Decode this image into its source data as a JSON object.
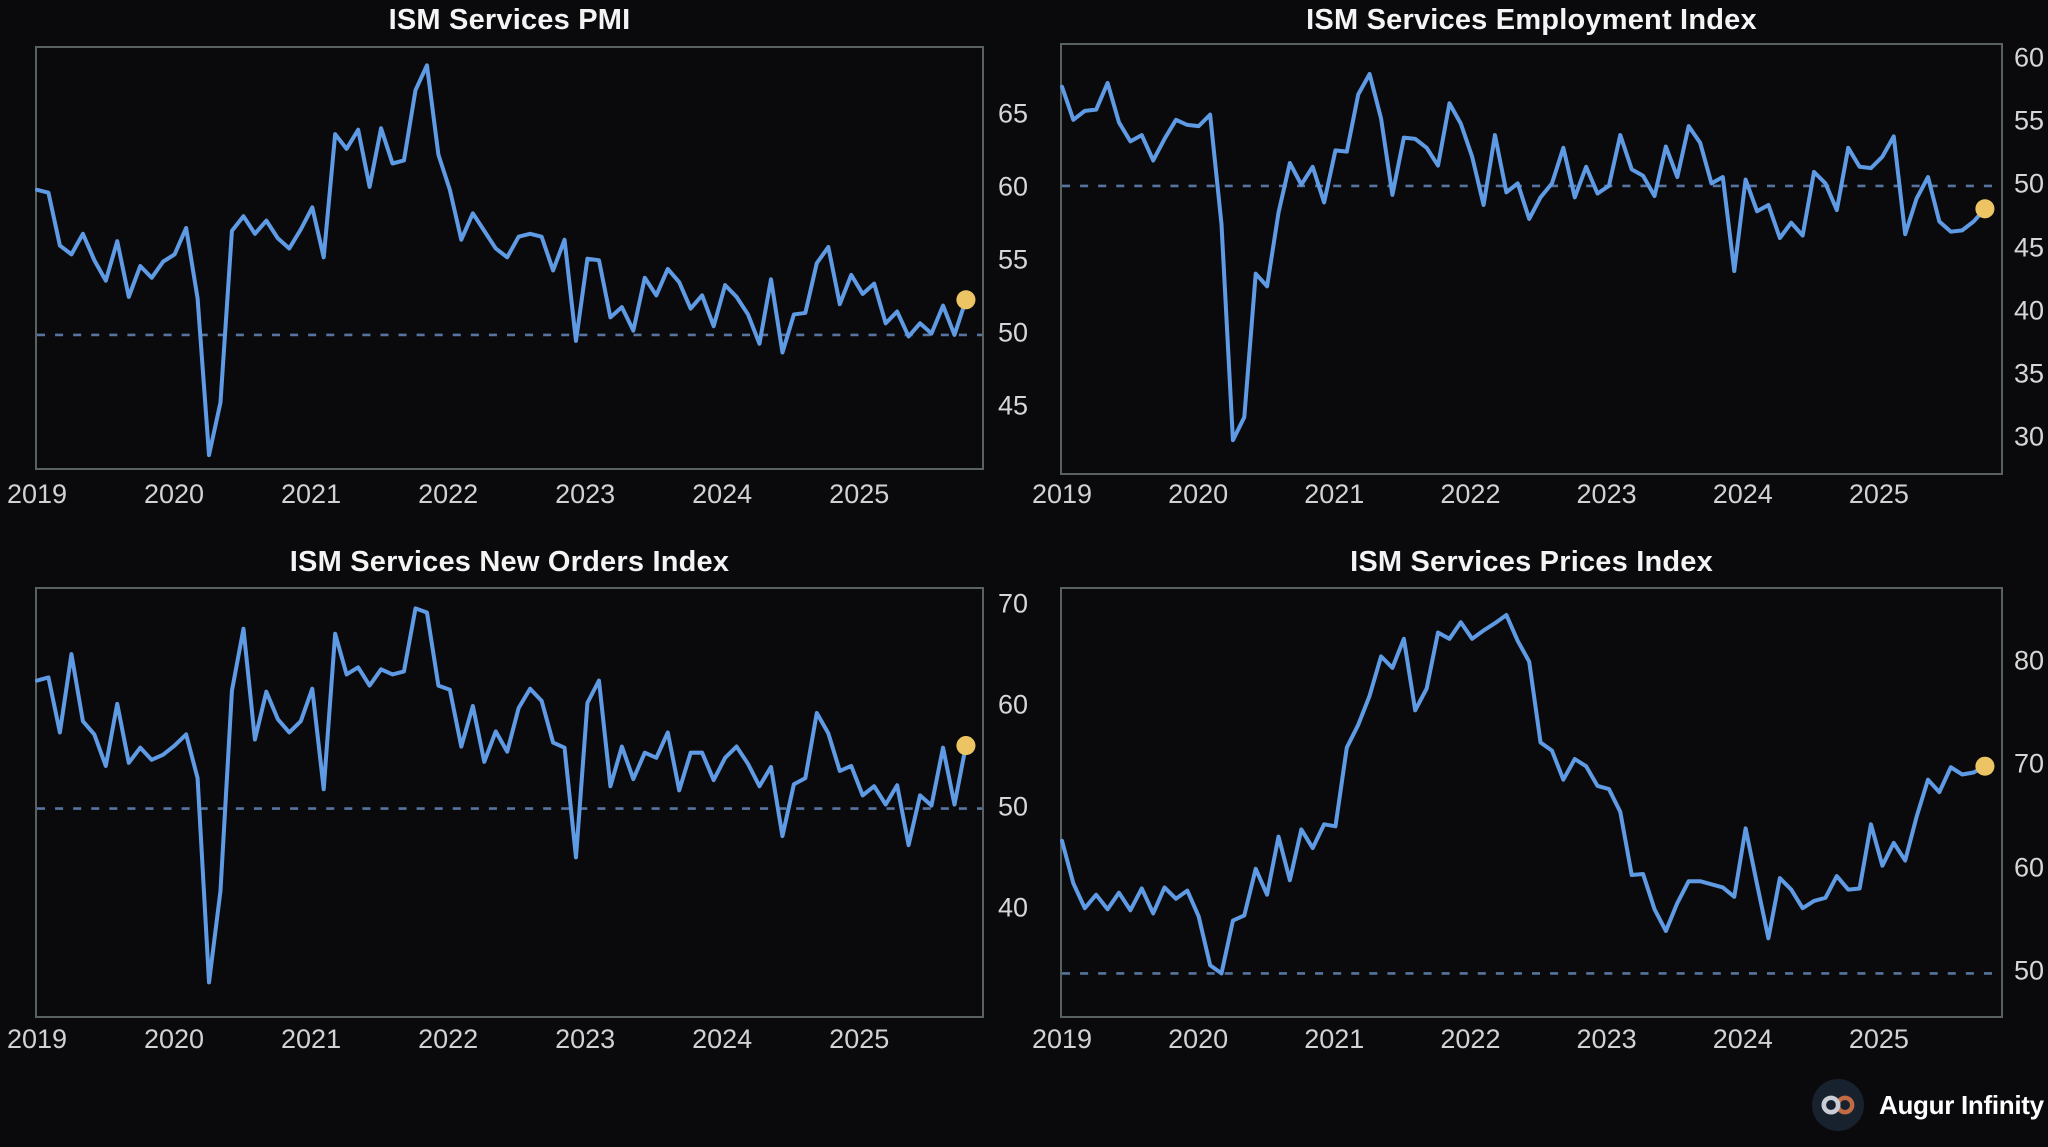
{
  "page": {
    "background": "#0a0a0c"
  },
  "branding": {
    "name": "Augur Infinity",
    "icon": "infinity-icon",
    "icon_colors": {
      "circle": "#18222f",
      "left_loop": "#c9ced6",
      "right_loop": "#c26a44"
    }
  },
  "style": {
    "line_color": "#5f9ae4",
    "marker_color": "#ecc464",
    "reference_line_color": "#56749f",
    "axis_border_color": "#5a625f",
    "tick_label_color": "#d6d6d6",
    "title_color": "#f4f4f4"
  },
  "x_axis": {
    "labels": [
      "2019",
      "2020",
      "2021",
      "2022",
      "2023",
      "2024",
      "2025"
    ],
    "month_indices": [
      0,
      12,
      24,
      36,
      48,
      60,
      72
    ]
  },
  "chart_data": [
    {
      "type": "line",
      "title": "ISM Services PMI",
      "frequency": "monthly",
      "start": "2019-01",
      "end": "2025-10",
      "y_ticks": [
        45,
        50,
        55,
        60,
        65
      ],
      "ylim": [
        41.0,
        69.5
      ],
      "reference_line": 50,
      "grid": false,
      "legend": "none",
      "end_marker": true,
      "values": [
        59.9,
        59.7,
        56.1,
        55.5,
        56.9,
        55.1,
        53.7,
        56.4,
        52.6,
        54.7,
        53.9,
        55.0,
        55.5,
        57.3,
        52.5,
        41.8,
        45.4,
        57.1,
        58.1,
        56.9,
        57.8,
        56.6,
        55.9,
        57.2,
        58.7,
        55.3,
        63.7,
        62.7,
        64.0,
        60.1,
        64.1,
        61.7,
        61.9,
        66.7,
        68.4,
        62.3,
        59.9,
        56.5,
        58.3,
        57.1,
        55.9,
        55.3,
        56.7,
        56.9,
        56.7,
        54.4,
        56.5,
        49.6,
        55.2,
        55.1,
        51.2,
        51.9,
        50.3,
        53.9,
        52.7,
        54.5,
        53.6,
        51.8,
        52.7,
        50.6,
        53.4,
        52.6,
        51.4,
        49.4,
        53.8,
        48.8,
        51.4,
        51.5,
        54.9,
        56.0,
        52.1,
        54.1,
        52.8,
        53.5,
        50.8,
        51.6,
        49.9,
        50.8,
        50.1,
        52.0,
        50.0,
        52.4
      ]
    },
    {
      "type": "line",
      "title": "ISM Services Employment Index",
      "frequency": "monthly",
      "start": "2019-01",
      "end": "2025-10",
      "y_ticks": [
        30,
        35,
        40,
        45,
        50,
        55,
        60
      ],
      "ylim": [
        27.5,
        61.0
      ],
      "reference_line": 50,
      "grid": false,
      "legend": "none",
      "end_marker": true,
      "values": [
        57.8,
        55.2,
        55.9,
        56.0,
        58.1,
        55.0,
        53.5,
        54.0,
        52.0,
        53.7,
        55.2,
        54.8,
        54.7,
        55.6,
        47.0,
        30.0,
        31.8,
        43.1,
        42.1,
        47.9,
        51.8,
        50.1,
        51.5,
        48.7,
        52.8,
        52.7,
        57.2,
        58.8,
        55.3,
        49.3,
        53.8,
        53.7,
        53.0,
        51.6,
        56.5,
        54.9,
        52.3,
        48.5,
        54.0,
        49.5,
        50.2,
        47.4,
        49.1,
        50.2,
        53.0,
        49.1,
        51.5,
        49.4,
        50.0,
        54.0,
        51.3,
        50.8,
        49.2,
        53.1,
        50.7,
        54.7,
        53.4,
        50.2,
        50.7,
        43.3,
        50.5,
        48.0,
        48.5,
        45.9,
        47.1,
        46.1,
        51.1,
        50.2,
        48.1,
        53.0,
        51.5,
        51.4,
        52.3,
        53.9,
        46.2,
        49.0,
        50.7,
        47.2,
        46.4,
        46.5,
        47.2,
        48.2
      ]
    },
    {
      "type": "line",
      "title": "ISM Services New Orders Index",
      "frequency": "monthly",
      "start": "2019-01",
      "end": "2025-10",
      "y_ticks": [
        40,
        50,
        60,
        70
      ],
      "ylim": [
        29.7,
        71.5
      ],
      "reference_line": 50,
      "grid": false,
      "legend": "none",
      "end_marker": true,
      "values": [
        62.6,
        62.9,
        57.5,
        65.2,
        58.6,
        57.3,
        54.2,
        60.3,
        54.5,
        56.0,
        54.8,
        55.3,
        56.2,
        57.3,
        53.0,
        32.9,
        41.9,
        61.6,
        67.7,
        56.8,
        61.5,
        58.8,
        57.5,
        58.6,
        61.8,
        51.9,
        67.2,
        63.2,
        63.9,
        62.1,
        63.7,
        63.2,
        63.5,
        69.7,
        69.3,
        62.1,
        61.7,
        56.1,
        60.1,
        54.6,
        57.6,
        55.6,
        59.9,
        61.8,
        60.6,
        56.5,
        56.0,
        45.2,
        60.4,
        62.6,
        52.2,
        56.1,
        52.9,
        55.5,
        55.0,
        57.5,
        51.8,
        55.5,
        55.5,
        52.8,
        55.0,
        56.1,
        54.4,
        52.2,
        54.1,
        47.3,
        52.4,
        53.0,
        59.4,
        57.4,
        53.7,
        54.2,
        51.3,
        52.2,
        50.4,
        52.3,
        46.4,
        51.3,
        50.3,
        56.0,
        50.4,
        56.2
      ]
    },
    {
      "type": "line",
      "title": "ISM Services Prices Index",
      "frequency": "monthly",
      "start": "2019-01",
      "end": "2025-10",
      "y_ticks": [
        50,
        60,
        70,
        80
      ],
      "ylim": [
        46.0,
        87.0
      ],
      "reference_line": 50,
      "grid": false,
      "legend": "none",
      "end_marker": true,
      "values": [
        62.8,
        58.7,
        56.3,
        57.6,
        56.2,
        57.8,
        56.1,
        58.2,
        55.8,
        58.3,
        57.2,
        58.0,
        55.5,
        50.8,
        50.0,
        55.1,
        55.6,
        60.1,
        57.6,
        63.2,
        59.0,
        63.9,
        62.1,
        64.4,
        64.2,
        71.8,
        74.0,
        76.8,
        80.6,
        79.5,
        82.3,
        75.4,
        77.5,
        82.9,
        82.3,
        83.9,
        82.3,
        83.1,
        83.8,
        84.6,
        82.1,
        80.1,
        72.3,
        71.5,
        68.7,
        70.7,
        70.0,
        68.1,
        67.8,
        65.6,
        59.5,
        59.6,
        56.2,
        54.1,
        56.8,
        58.9,
        58.9,
        58.6,
        58.3,
        57.4,
        64.0,
        58.6,
        53.4,
        59.2,
        58.1,
        56.3,
        57.0,
        57.3,
        59.4,
        58.1,
        58.2,
        64.4,
        60.4,
        62.6,
        60.9,
        65.1,
        68.7,
        67.5,
        69.9,
        69.2,
        69.4,
        70.0
      ]
    }
  ]
}
